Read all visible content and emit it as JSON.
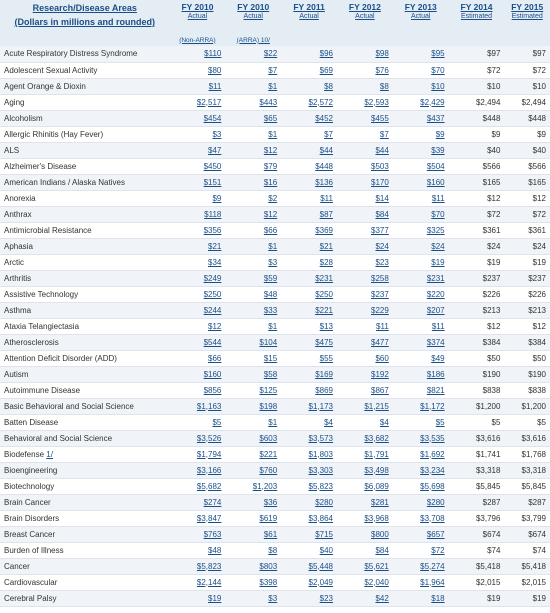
{
  "header": {
    "area_title_line1": "Research/Disease Areas",
    "area_title_line2": "(Dollars in millions and rounded)",
    "columns": [
      {
        "year": "FY 2010",
        "status": "Actual",
        "note": "(Non-ARRA)"
      },
      {
        "year": "FY 2010",
        "status": "Actual",
        "note": "(ARRA) 10/"
      },
      {
        "year": "FY 2011",
        "status": "Actual",
        "note": ""
      },
      {
        "year": "FY 2012",
        "status": "Actual",
        "note": ""
      },
      {
        "year": "FY 2013",
        "status": "Actual",
        "note": ""
      },
      {
        "year": "FY 2014",
        "status": "Estimated",
        "note": ""
      },
      {
        "year": "FY 2015",
        "status": "Estimated",
        "note": ""
      }
    ]
  },
  "rows": [
    {
      "area": "Acute Respiratory Distress Syndrome",
      "v": [
        "$110",
        "$22",
        "$96",
        "$98",
        "$95",
        "$97",
        "$97"
      ]
    },
    {
      "area": "Adolescent Sexual Activity",
      "v": [
        "$80",
        "$7",
        "$69",
        "$76",
        "$70",
        "$72",
        "$72"
      ]
    },
    {
      "area": "Agent Orange & Dioxin",
      "v": [
        "$11",
        "$1",
        "$8",
        "$8",
        "$10",
        "$10",
        "$10"
      ]
    },
    {
      "area": "Aging",
      "v": [
        "$2,517",
        "$443",
        "$2,572",
        "$2,593",
        "$2,429",
        "$2,494",
        "$2,494"
      ]
    },
    {
      "area": "Alcoholism",
      "v": [
        "$454",
        "$65",
        "$452",
        "$455",
        "$437",
        "$448",
        "$448"
      ]
    },
    {
      "area": "Allergic Rhinitis (Hay Fever)",
      "v": [
        "$3",
        "$1",
        "$7",
        "$7",
        "$9",
        "$9",
        "$9"
      ]
    },
    {
      "area": "ALS",
      "v": [
        "$47",
        "$12",
        "$44",
        "$44",
        "$39",
        "$40",
        "$40"
      ]
    },
    {
      "area": "Alzheimer's Disease",
      "v": [
        "$450",
        "$79",
        "$448",
        "$503",
        "$504",
        "$566",
        "$566"
      ]
    },
    {
      "area": "American Indians / Alaska Natives",
      "v": [
        "$151",
        "$16",
        "$136",
        "$170",
        "$160",
        "$165",
        "$165"
      ]
    },
    {
      "area": "Anorexia",
      "v": [
        "$9",
        "$2",
        "$11",
        "$14",
        "$11",
        "$12",
        "$12"
      ]
    },
    {
      "area": "Anthrax",
      "v": [
        "$118",
        "$12",
        "$87",
        "$84",
        "$70",
        "$72",
        "$72"
      ]
    },
    {
      "area": "Antimicrobial Resistance",
      "v": [
        "$356",
        "$66",
        "$369",
        "$377",
        "$325",
        "$361",
        "$361"
      ]
    },
    {
      "area": "Aphasia",
      "v": [
        "$21",
        "$1",
        "$21",
        "$24",
        "$24",
        "$24",
        "$24"
      ]
    },
    {
      "area": "Arctic",
      "v": [
        "$34",
        "$3",
        "$28",
        "$23",
        "$19",
        "$19",
        "$19"
      ]
    },
    {
      "area": "Arthritis",
      "v": [
        "$249",
        "$59",
        "$231",
        "$258",
        "$231",
        "$237",
        "$237"
      ]
    },
    {
      "area": "Assistive Technology",
      "v": [
        "$250",
        "$48",
        "$250",
        "$237",
        "$220",
        "$226",
        "$226"
      ]
    },
    {
      "area": "Asthma",
      "v": [
        "$244",
        "$33",
        "$221",
        "$229",
        "$207",
        "$213",
        "$213"
      ]
    },
    {
      "area": "Ataxia Telangiectasia",
      "v": [
        "$12",
        "$1",
        "$13",
        "$11",
        "$11",
        "$12",
        "$12"
      ]
    },
    {
      "area": "Atherosclerosis",
      "v": [
        "$544",
        "$104",
        "$475",
        "$477",
        "$374",
        "$384",
        "$384"
      ]
    },
    {
      "area": "Attention Deficit Disorder (ADD)",
      "v": [
        "$66",
        "$15",
        "$55",
        "$60",
        "$49",
        "$50",
        "$50"
      ]
    },
    {
      "area": "Autism",
      "v": [
        "$160",
        "$58",
        "$169",
        "$192",
        "$186",
        "$190",
        "$190"
      ]
    },
    {
      "area": "Autoimmune Disease",
      "v": [
        "$856",
        "$125",
        "$869",
        "$867",
        "$821",
        "$838",
        "$838"
      ]
    },
    {
      "area": "Basic Behavioral and Social Science",
      "v": [
        "$1,163",
        "$198",
        "$1,173",
        "$1,215",
        "$1,172",
        "$1,200",
        "$1,200"
      ]
    },
    {
      "area": "Batten Disease",
      "v": [
        "$5",
        "$1",
        "$4",
        "$4",
        "$5",
        "$5",
        "$5"
      ]
    },
    {
      "area": "Behavioral and Social Science",
      "v": [
        "$3,526",
        "$603",
        "$3,573",
        "$3,682",
        "$3,535",
        "$3,616",
        "$3,616"
      ]
    },
    {
      "area": "Biodefense 1/",
      "link": "1/",
      "v": [
        "$1,794",
        "$221",
        "$1,803",
        "$1,791",
        "$1,692",
        "$1,741",
        "$1,768"
      ]
    },
    {
      "area": "Bioengineering",
      "v": [
        "$3,166",
        "$760",
        "$3,303",
        "$3,498",
        "$3,234",
        "$3,318",
        "$3,318"
      ]
    },
    {
      "area": "Biotechnology",
      "v": [
        "$5,682",
        "$1,203",
        "$5,823",
        "$6,089",
        "$5,698",
        "$5,845",
        "$5,845"
      ]
    },
    {
      "area": "Brain Cancer",
      "v": [
        "$274",
        "$36",
        "$280",
        "$281",
        "$280",
        "$287",
        "$287"
      ]
    },
    {
      "area": "Brain Disorders",
      "v": [
        "$3,847",
        "$619",
        "$3,864",
        "$3,968",
        "$3,708",
        "$3,796",
        "$3,799"
      ]
    },
    {
      "area": "Breast Cancer",
      "v": [
        "$763",
        "$61",
        "$715",
        "$800",
        "$657",
        "$674",
        "$674"
      ]
    },
    {
      "area": "Burden of Illness",
      "v": [
        "$48",
        "$8",
        "$40",
        "$84",
        "$72",
        "$74",
        "$74"
      ]
    },
    {
      "area": "Cancer",
      "v": [
        "$5,823",
        "$803",
        "$5,448",
        "$5,621",
        "$5,274",
        "$5,418",
        "$5,418"
      ]
    },
    {
      "area": "Cardiovascular",
      "v": [
        "$2,144",
        "$398",
        "$2,049",
        "$2,040",
        "$1,964",
        "$2,015",
        "$2,015"
      ]
    },
    {
      "area": "Cerebral Palsy",
      "v": [
        "$19",
        "$3",
        "$23",
        "$42",
        "$18",
        "$19",
        "$19"
      ]
    }
  ]
}
